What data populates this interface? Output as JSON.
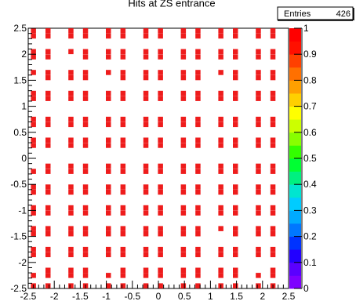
{
  "chart_data": {
    "type": "heatmap",
    "title": "Hits at ZS entrance",
    "stats": {
      "label": "Entries",
      "value": "426"
    },
    "xlim": [
      -2.5,
      2.5
    ],
    "ylim": [
      -2.5,
      2.5
    ],
    "xticks": [
      "-2.5",
      "-2",
      "-1.5",
      "-1",
      "-0.5",
      "0",
      "0.5",
      "1",
      "1.5",
      "2",
      "2.5"
    ],
    "yticks": [
      "-2.5",
      "-2",
      "-1.5",
      "-1",
      "-0.5",
      "0",
      "0.5",
      "1",
      "1.5",
      "2",
      "2.5"
    ],
    "zlim": [
      0,
      1
    ],
    "zticks": [
      "0",
      "0.1",
      "0.2",
      "0.3",
      "0.4",
      "0.5",
      "0.6",
      "0.7",
      "0.8",
      "0.9",
      "1"
    ],
    "marker_color": "#ee1c1c",
    "palette": [
      "#7e00ff",
      "#5a00ff",
      "#2200ff",
      "#0033ff",
      "#0077ff",
      "#00aaff",
      "#00ccff",
      "#00e5d0",
      "#00f080",
      "#00ff33",
      "#33ff00",
      "#88ff00",
      "#ccff00",
      "#ffff00",
      "#ffd000",
      "#ffa000",
      "#ff7000",
      "#ff4000",
      "#ff1000",
      "#ff0000"
    ],
    "columns": [
      -2.4,
      -2.12,
      -1.68,
      -1.4,
      -0.96,
      -0.68,
      -0.24,
      0.04,
      0.48,
      0.76,
      1.2,
      1.48,
      1.92,
      2.2
    ],
    "rows": [
      2.45,
      2.35,
      2.05,
      1.95,
      1.65,
      1.55,
      1.25,
      1.15,
      0.75,
      0.65,
      0.35,
      0.25,
      -0.15,
      -0.25,
      -0.55,
      -0.65,
      -0.95,
      -1.05,
      -1.35,
      -1.45,
      -1.75,
      -1.85,
      -2.15,
      -2.25,
      -2.45
    ],
    "empty_cells": [
      [
        2,
        3
      ],
      [
        0,
        5
      ],
      [
        4,
        5
      ],
      [
        10,
        5
      ],
      [
        0,
        12
      ],
      [
        10,
        19
      ],
      [
        0,
        22
      ],
      [
        4,
        22
      ],
      [
        12,
        22
      ]
    ]
  }
}
